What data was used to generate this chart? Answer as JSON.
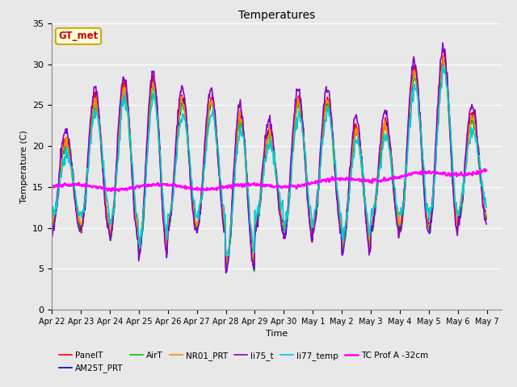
{
  "title": "Temperatures",
  "xlabel": "Time",
  "ylabel": "Temperature (C)",
  "ylim": [
    0,
    35
  ],
  "background_color": "#e8e8e8",
  "grid_color": "#ffffff",
  "annotation_text": "GT_met",
  "annotation_color": "#cc0000",
  "annotation_bg": "#ffffdd",
  "annotation_edge": "#ccaa00",
  "x_tick_labels": [
    "Apr 22",
    "Apr 23",
    "Apr 24",
    "Apr 25",
    "Apr 26",
    "Apr 27",
    "Apr 28",
    "Apr 29",
    "Apr 30",
    "May 1",
    "May 2",
    "May 3",
    "May 4",
    "May 5",
    "May 6",
    "May 7"
  ],
  "legend_entries": [
    "PanelT",
    "AM25T_PRT",
    "AirT",
    "NR01_PRT",
    "li75_t",
    "li77_temp",
    "TC Prof A -32cm"
  ],
  "line_colors": [
    "#ff0000",
    "#0000cc",
    "#00cc00",
    "#ff8800",
    "#8800cc",
    "#00cccc",
    "#ff00ff"
  ],
  "line_widths": [
    1.2,
    1.2,
    1.2,
    1.2,
    1.2,
    1.2,
    1.8
  ],
  "figsize": [
    6.4,
    4.8
  ],
  "dpi": 100
}
